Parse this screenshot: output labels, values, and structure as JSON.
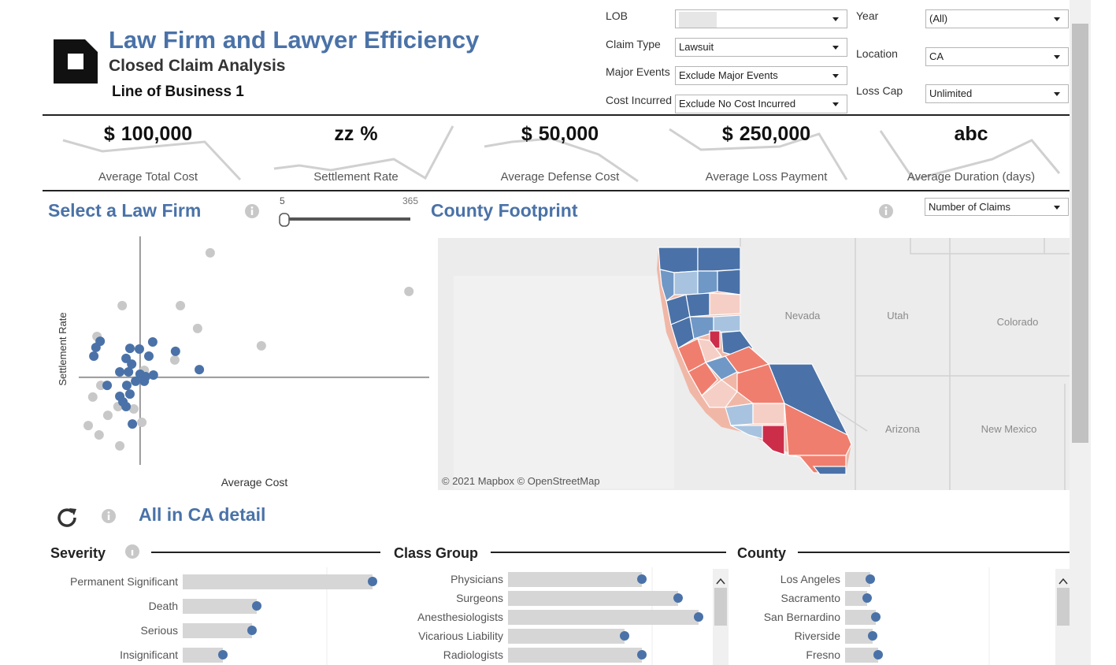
{
  "header": {
    "title": "Law Firm and Lawyer Efficiency",
    "subtitle": "Closed Claim Analysis",
    "line_of_business": "Line of Business 1"
  },
  "filters": {
    "lob": {
      "label": "LOB"
    },
    "claim_type": {
      "label": "Claim Type",
      "value": "Lawsuit"
    },
    "major_events": {
      "label": "Major Events",
      "value": "Exclude Major Events"
    },
    "cost_incurred": {
      "label": "Cost Incurred",
      "value": "Exclude No Cost Incurred"
    },
    "year": {
      "label": "Year",
      "value": "(All)"
    },
    "location": {
      "label": "Location",
      "value": "CA"
    },
    "loss_cap": {
      "label": "Loss Cap",
      "value": "Unlimited"
    }
  },
  "kpis": [
    {
      "prefix": "$",
      "value": "100,000",
      "label": "Average Total Cost"
    },
    {
      "value": "zz",
      "suffix": "%",
      "label": "Settlement Rate"
    },
    {
      "prefix": "$",
      "value": "50,000",
      "label": "Average Defense Cost"
    },
    {
      "prefix": "$",
      "value": "250,000",
      "label": "Average Loss Payment"
    },
    {
      "value": "abc",
      "label": "Average Duration (days)"
    }
  ],
  "law_firm": {
    "title": "Select a Law Firm",
    "slider": {
      "min": 5,
      "max": 365
    },
    "chart_data": {
      "type": "scatter",
      "x_label": "Average Cost",
      "y_label": "Settlement Rate",
      "xlim": [
        0,
        100
      ],
      "ylim": [
        0,
        100
      ],
      "reference_x": 17.5,
      "reference_y": 38.3,
      "series": [
        {
          "color": "#c8c8c8",
          "x": [
            37.5,
            94.2,
            12.4,
            29.0,
            33.9,
            52.1,
            5.2,
            27.4,
            18.7,
            6.3,
            4.0,
            11.2,
            15.7,
            8.3,
            2.7,
            5.8,
            18.0,
            11.7
          ],
          "y": [
            92.8,
            75.9,
            69.7,
            69.7,
            59.7,
            52.1,
            56.2,
            45.9,
            41.4,
            34.8,
            29.7,
            25.5,
            24.5,
            21.7,
            17.2,
            13.1,
            18.6,
            8.3
          ]
        },
        {
          "color": "#4a72a8",
          "x": [
            21.1,
            27.6,
            34.4,
            17.3,
            14.6,
            4.9,
            6.1,
            4.3,
            13.5,
            20.0,
            15.1,
            11.7,
            14.2,
            17.5,
            21.3,
            16.2,
            18.7,
            8.1,
            13.7,
            11.7,
            14.6,
            12.6,
            13.5,
            15.3,
            19.1
          ],
          "y": [
            53.8,
            49.7,
            41.7,
            50.7,
            51.0,
            51.4,
            54.1,
            47.6,
            46.6,
            47.6,
            44.1,
            40.7,
            40.7,
            39.7,
            39.3,
            36.6,
            36.6,
            34.8,
            34.8,
            30.0,
            31.0,
            27.6,
            25.5,
            17.9,
            38.6
          ]
        }
      ]
    }
  },
  "map": {
    "title": "County Footprint",
    "measure": "Number of Claims",
    "states": [
      "Nevada",
      "Utah",
      "Colorado",
      "Arizona",
      "New Mexico"
    ],
    "attribution": "© 2021 Mapbox © OpenStreetMap"
  },
  "detail": {
    "title": "All in CA detail",
    "panels": [
      {
        "title": "Severity",
        "chart_data": {
          "type": "bar",
          "xlim": [
            0,
            250
          ],
          "categories": [
            "Permanent Significant",
            "Death",
            "Serious",
            "Insignificant"
          ],
          "values": [
            241,
            94,
            88,
            51
          ]
        }
      },
      {
        "title": "Class Group",
        "chart_data": {
          "type": "bar",
          "xlim": [
            0,
            250
          ],
          "categories": [
            "Physicians",
            "Surgeons",
            "Anesthesiologists",
            "Vicarious Liability",
            "Radiologists"
          ],
          "values": [
            170,
            216,
            242,
            148,
            170
          ]
        }
      },
      {
        "title": "County",
        "chart_data": {
          "type": "bar",
          "xlim": [
            0,
            250
          ],
          "categories": [
            "Los Angeles",
            "Sacramento",
            "San Bernardino",
            "Riverside",
            "Fresno"
          ],
          "values": [
            32,
            28,
            39,
            35,
            42
          ]
        }
      }
    ]
  }
}
